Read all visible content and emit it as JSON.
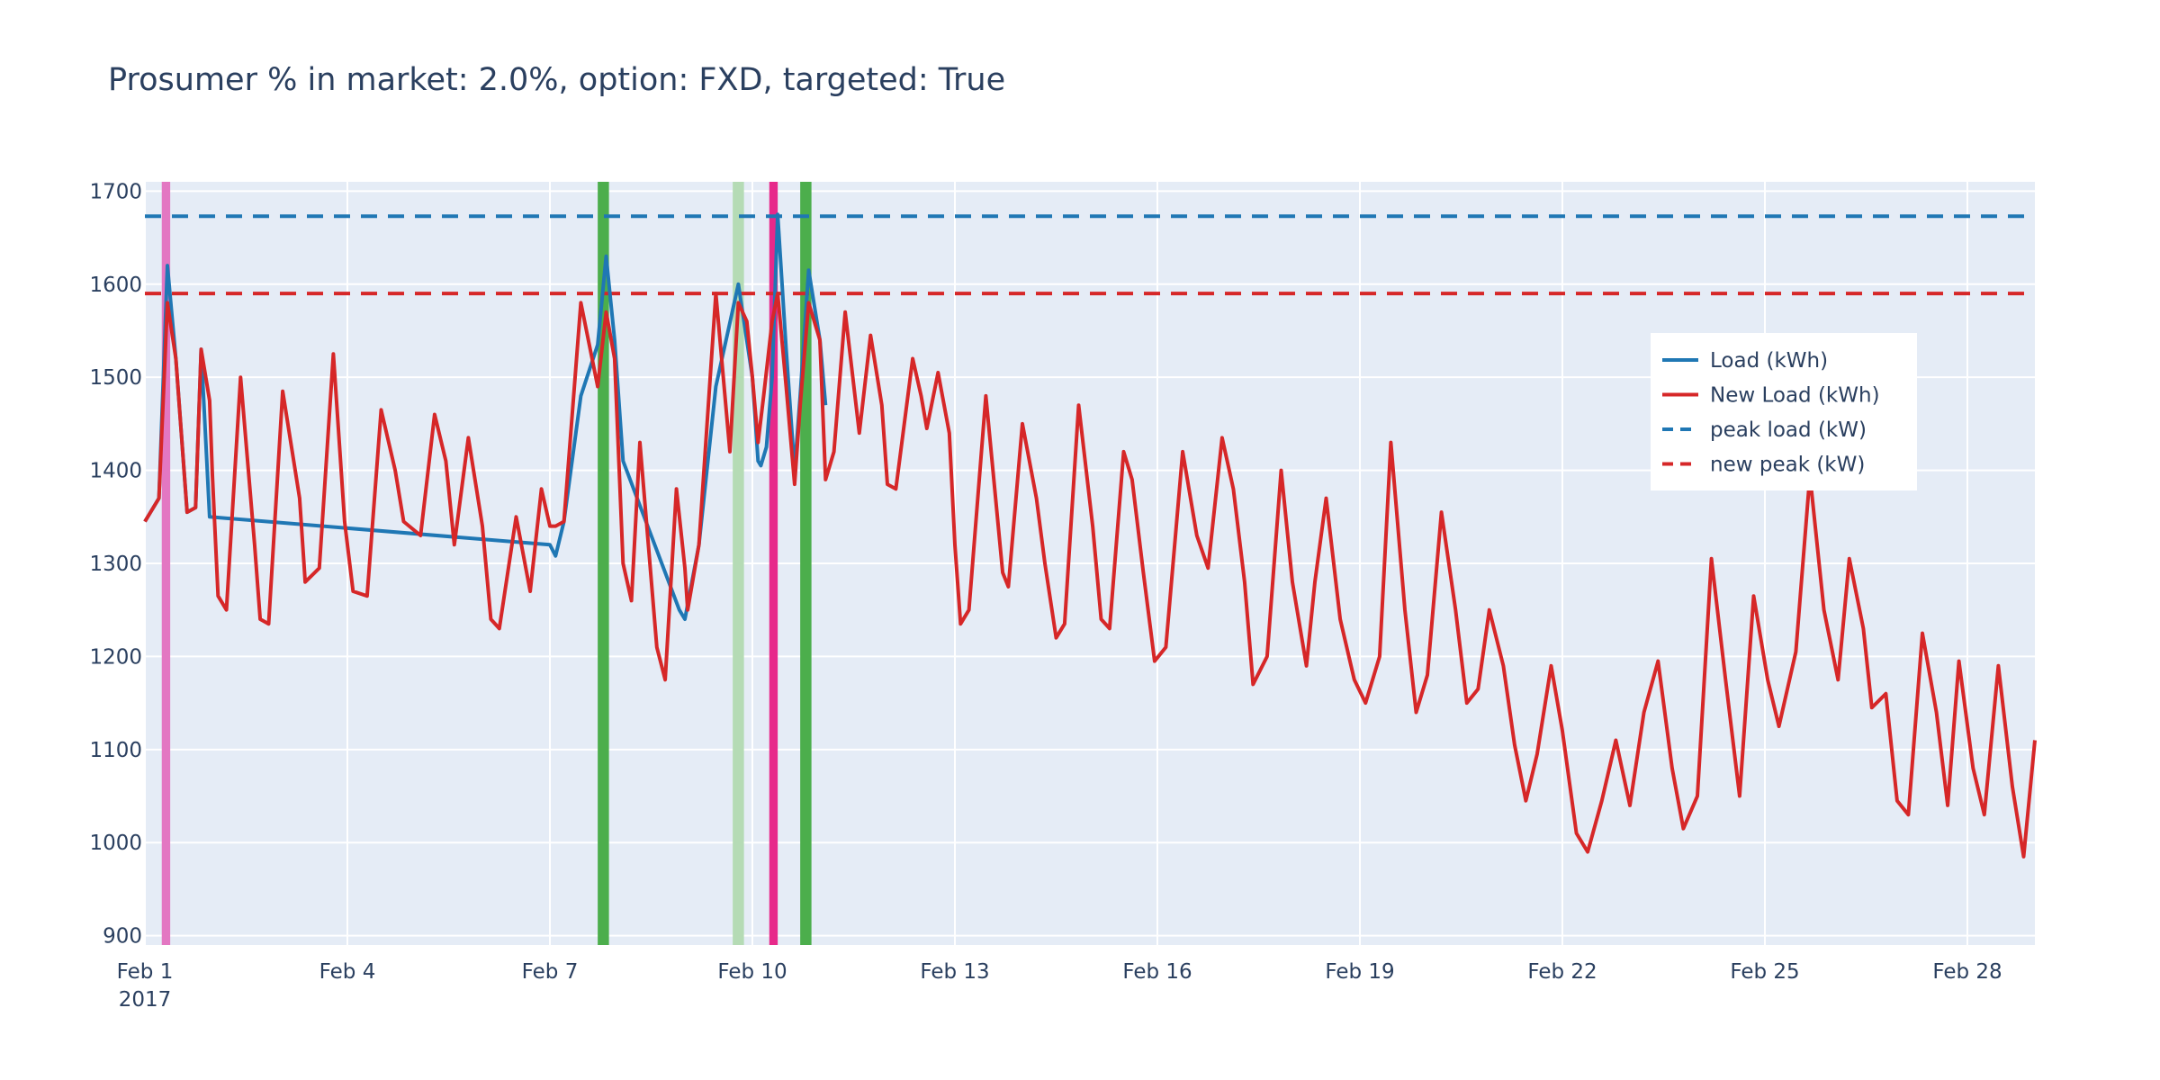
{
  "chart_data": {
    "type": "line",
    "title": "Prosumer % in market: 2.0%, option: FXD, targeted: True",
    "xlabel": "",
    "ylabel": "",
    "x_range": [
      "2017-02-01",
      "2017-02-29"
    ],
    "x_ticks": [
      {
        "value": "2017-02-01",
        "label": "Feb 1",
        "sublabel": "2017"
      },
      {
        "value": "2017-02-04",
        "label": "Feb 4"
      },
      {
        "value": "2017-02-07",
        "label": "Feb 7"
      },
      {
        "value": "2017-02-10",
        "label": "Feb 10"
      },
      {
        "value": "2017-02-13",
        "label": "Feb 13"
      },
      {
        "value": "2017-02-16",
        "label": "Feb 16"
      },
      {
        "value": "2017-02-19",
        "label": "Feb 19"
      },
      {
        "value": "2017-02-22",
        "label": "Feb 22"
      },
      {
        "value": "2017-02-25",
        "label": "Feb 25"
      },
      {
        "value": "2017-02-28",
        "label": "Feb 28"
      }
    ],
    "ylim": [
      890,
      1710
    ],
    "y_ticks": [
      900,
      1000,
      1100,
      1200,
      1300,
      1400,
      1500,
      1600,
      1700
    ],
    "grid": true,
    "legend_position": "right",
    "colors": {
      "load": "#1f77b4",
      "new_load": "#d62728",
      "plot_bg": "#e5ecf6",
      "grid": "#ffffff",
      "text": "#2a3f5f"
    },
    "bands": [
      {
        "start": "2017-02-01 06:00",
        "end": "2017-02-01 09:00",
        "color": "#e377c2"
      },
      {
        "start": "2017-02-07 17:00",
        "end": "2017-02-07 21:00",
        "color": "#4cae4c"
      },
      {
        "start": "2017-02-09 17:00",
        "end": "2017-02-09 21:00",
        "color": "#b5dbb5"
      },
      {
        "start": "2017-02-10 06:00",
        "end": "2017-02-10 09:00",
        "color": "#e7298a"
      },
      {
        "start": "2017-02-10 17:00",
        "end": "2017-02-10 21:00",
        "color": "#4cae4c"
      }
    ],
    "hlines": [
      {
        "name": "peak load (kW)",
        "value": 1673,
        "color": "#1f77b4",
        "dash": true
      },
      {
        "name": "new peak (kW)",
        "value": 1590,
        "color": "#d62728",
        "dash": true
      }
    ],
    "series": [
      {
        "name": "Load (kWh)",
        "color": "#1f77b4",
        "points": [
          [
            "2017-02-01 00:00",
            1345
          ],
          [
            "2017-02-01 05:00",
            1370
          ],
          [
            "2017-02-01 08:00",
            1620
          ],
          [
            "2017-02-01 11:00",
            1520
          ],
          [
            "2017-02-01 15:00",
            1355
          ],
          [
            "2017-02-01 18:00",
            1360
          ],
          [
            "2017-02-01 20:00",
            1530
          ],
          [
            "2017-02-01 23:00",
            1350
          ],
          [
            "2017-02-07 00:00",
            1320
          ],
          [
            "2017-02-07 02:00",
            1308
          ],
          [
            "2017-02-07 05:00",
            1345
          ],
          [
            "2017-02-07 11:00",
            1480
          ],
          [
            "2017-02-07 17:00",
            1535
          ],
          [
            "2017-02-07 20:00",
            1630
          ],
          [
            "2017-02-07 23:00",
            1540
          ],
          [
            "2017-02-08 02:00",
            1410
          ],
          [
            "2017-02-08 22:00",
            1250
          ],
          [
            "2017-02-09 00:00",
            1240
          ],
          [
            "2017-02-09 05:00",
            1320
          ],
          [
            "2017-02-09 11:00",
            1490
          ],
          [
            "2017-02-09 19:00",
            1600
          ],
          [
            "2017-02-10 00:00",
            1500
          ],
          [
            "2017-02-10 02:00",
            1410
          ],
          [
            "2017-02-10 03:00",
            1405
          ],
          [
            "2017-02-10 05:00",
            1425
          ],
          [
            "2017-02-10 07:00",
            1500
          ],
          [
            "2017-02-10 09:00",
            1675
          ],
          [
            "2017-02-10 12:00",
            1530
          ],
          [
            "2017-02-10 15:00",
            1400
          ],
          [
            "2017-02-10 17:00",
            1480
          ],
          [
            "2017-02-10 20:00",
            1615
          ],
          [
            "2017-02-11 00:00",
            1540
          ],
          [
            "2017-02-11 02:00",
            1470
          ]
        ]
      },
      {
        "name": "New Load (kWh)",
        "color": "#d62728",
        "points": [
          [
            "2017-02-01 00:00",
            1345
          ],
          [
            "2017-02-01 05:00",
            1370
          ],
          [
            "2017-02-01 08:00",
            1580
          ],
          [
            "2017-02-01 11:00",
            1520
          ],
          [
            "2017-02-01 15:00",
            1355
          ],
          [
            "2017-02-01 18:00",
            1360
          ],
          [
            "2017-02-01 20:00",
            1530
          ],
          [
            "2017-02-01 23:00",
            1475
          ],
          [
            "2017-02-02 00:00",
            1395
          ],
          [
            "2017-02-02 02:00",
            1265
          ],
          [
            "2017-02-02 05:00",
            1250
          ],
          [
            "2017-02-02 10:00",
            1500
          ],
          [
            "2017-02-02 15:00",
            1320
          ],
          [
            "2017-02-02 17:00",
            1240
          ],
          [
            "2017-02-02 20:00",
            1235
          ],
          [
            "2017-02-03 01:00",
            1485
          ],
          [
            "2017-02-03 07:00",
            1370
          ],
          [
            "2017-02-03 09:00",
            1280
          ],
          [
            "2017-02-03 14:00",
            1295
          ],
          [
            "2017-02-03 19:00",
            1525
          ],
          [
            "2017-02-03 23:00",
            1345
          ],
          [
            "2017-02-04 02:00",
            1270
          ],
          [
            "2017-02-04 07:00",
            1265
          ],
          [
            "2017-02-04 12:00",
            1465
          ],
          [
            "2017-02-04 17:00",
            1400
          ],
          [
            "2017-02-04 20:00",
            1345
          ],
          [
            "2017-02-05 02:00",
            1330
          ],
          [
            "2017-02-05 07:00",
            1460
          ],
          [
            "2017-02-05 11:00",
            1410
          ],
          [
            "2017-02-05 14:00",
            1320
          ],
          [
            "2017-02-05 19:00",
            1435
          ],
          [
            "2017-02-06 00:00",
            1340
          ],
          [
            "2017-02-06 03:00",
            1240
          ],
          [
            "2017-02-06 06:00",
            1230
          ],
          [
            "2017-02-06 12:00",
            1350
          ],
          [
            "2017-02-06 17:00",
            1270
          ],
          [
            "2017-02-06 21:00",
            1380
          ],
          [
            "2017-02-07 00:00",
            1340
          ],
          [
            "2017-02-07 02:00",
            1340
          ],
          [
            "2017-02-07 05:00",
            1345
          ],
          [
            "2017-02-07 11:00",
            1580
          ],
          [
            "2017-02-07 17:00",
            1490
          ],
          [
            "2017-02-07 20:00",
            1570
          ],
          [
            "2017-02-07 23:00",
            1520
          ],
          [
            "2017-02-08 02:00",
            1300
          ],
          [
            "2017-02-08 05:00",
            1260
          ],
          [
            "2017-02-08 08:00",
            1430
          ],
          [
            "2017-02-08 14:00",
            1210
          ],
          [
            "2017-02-08 17:00",
            1175
          ],
          [
            "2017-02-08 21:00",
            1380
          ],
          [
            "2017-02-09 00:00",
            1295
          ],
          [
            "2017-02-09 01:00",
            1250
          ],
          [
            "2017-02-09 05:00",
            1320
          ],
          [
            "2017-02-09 11:00",
            1590
          ],
          [
            "2017-02-09 16:00",
            1420
          ],
          [
            "2017-02-09 19:00",
            1580
          ],
          [
            "2017-02-09 22:00",
            1560
          ],
          [
            "2017-02-10 00:00",
            1500
          ],
          [
            "2017-02-10 02:00",
            1430
          ],
          [
            "2017-02-10 04:00",
            1480
          ],
          [
            "2017-02-10 07:00",
            1560
          ],
          [
            "2017-02-10 09:00",
            1590
          ],
          [
            "2017-02-10 12:00",
            1490
          ],
          [
            "2017-02-10 15:00",
            1385
          ],
          [
            "2017-02-10 17:00",
            1470
          ],
          [
            "2017-02-10 20:00",
            1580
          ],
          [
            "2017-02-11 00:00",
            1540
          ],
          [
            "2017-02-11 02:00",
            1390
          ],
          [
            "2017-02-11 05:00",
            1420
          ],
          [
            "2017-02-11 09:00",
            1570
          ],
          [
            "2017-02-11 14:00",
            1440
          ],
          [
            "2017-02-11 18:00",
            1545
          ],
          [
            "2017-02-11 22:00",
            1470
          ],
          [
            "2017-02-12 00:00",
            1385
          ],
          [
            "2017-02-12 03:00",
            1380
          ],
          [
            "2017-02-12 09:00",
            1520
          ],
          [
            "2017-02-12 12:00",
            1480
          ],
          [
            "2017-02-12 14:00",
            1445
          ],
          [
            "2017-02-12 18:00",
            1505
          ],
          [
            "2017-02-12 22:00",
            1440
          ],
          [
            "2017-02-13 00:00",
            1320
          ],
          [
            "2017-02-13 02:00",
            1235
          ],
          [
            "2017-02-13 05:00",
            1250
          ],
          [
            "2017-02-13 11:00",
            1480
          ],
          [
            "2017-02-13 17:00",
            1290
          ],
          [
            "2017-02-13 19:00",
            1275
          ],
          [
            "2017-02-14 00:00",
            1450
          ],
          [
            "2017-02-14 05:00",
            1370
          ],
          [
            "2017-02-14 08:00",
            1300
          ],
          [
            "2017-02-14 12:00",
            1220
          ],
          [
            "2017-02-14 15:00",
            1235
          ],
          [
            "2017-02-14 20:00",
            1470
          ],
          [
            "2017-02-15 01:00",
            1340
          ],
          [
            "2017-02-15 04:00",
            1240
          ],
          [
            "2017-02-15 07:00",
            1230
          ],
          [
            "2017-02-15 12:00",
            1420
          ],
          [
            "2017-02-15 15:00",
            1390
          ],
          [
            "2017-02-15 19:00",
            1290
          ],
          [
            "2017-02-15 23:00",
            1195
          ],
          [
            "2017-02-16 03:00",
            1210
          ],
          [
            "2017-02-16 09:00",
            1420
          ],
          [
            "2017-02-16 14:00",
            1330
          ],
          [
            "2017-02-16 18:00",
            1295
          ],
          [
            "2017-02-16 23:00",
            1435
          ],
          [
            "2017-02-17 03:00",
            1380
          ],
          [
            "2017-02-17 07:00",
            1280
          ],
          [
            "2017-02-17 10:00",
            1170
          ],
          [
            "2017-02-17 15:00",
            1200
          ],
          [
            "2017-02-17 20:00",
            1400
          ],
          [
            "2017-02-18 00:00",
            1280
          ],
          [
            "2017-02-18 05:00",
            1190
          ],
          [
            "2017-02-18 08:00",
            1280
          ],
          [
            "2017-02-18 12:00",
            1370
          ],
          [
            "2017-02-18 17:00",
            1240
          ],
          [
            "2017-02-18 22:00",
            1175
          ],
          [
            "2017-02-19 02:00",
            1150
          ],
          [
            "2017-02-19 07:00",
            1200
          ],
          [
            "2017-02-19 11:00",
            1430
          ],
          [
            "2017-02-19 16:00",
            1250
          ],
          [
            "2017-02-19 20:00",
            1140
          ],
          [
            "2017-02-20 00:00",
            1180
          ],
          [
            "2017-02-20 05:00",
            1355
          ],
          [
            "2017-02-20 10:00",
            1250
          ],
          [
            "2017-02-20 14:00",
            1150
          ],
          [
            "2017-02-20 18:00",
            1165
          ],
          [
            "2017-02-20 22:00",
            1250
          ],
          [
            "2017-02-21 03:00",
            1190
          ],
          [
            "2017-02-21 07:00",
            1105
          ],
          [
            "2017-02-21 11:00",
            1045
          ],
          [
            "2017-02-21 15:00",
            1095
          ],
          [
            "2017-02-21 20:00",
            1190
          ],
          [
            "2017-02-22 00:00",
            1120
          ],
          [
            "2017-02-22 05:00",
            1010
          ],
          [
            "2017-02-22 09:00",
            990
          ],
          [
            "2017-02-22 14:00",
            1045
          ],
          [
            "2017-02-22 19:00",
            1110
          ],
          [
            "2017-02-23 00:00",
            1040
          ],
          [
            "2017-02-23 05:00",
            1140
          ],
          [
            "2017-02-23 10:00",
            1195
          ],
          [
            "2017-02-23 15:00",
            1080
          ],
          [
            "2017-02-23 19:00",
            1015
          ],
          [
            "2017-02-24 00:00",
            1050
          ],
          [
            "2017-02-24 05:00",
            1305
          ],
          [
            "2017-02-24 10:00",
            1175
          ],
          [
            "2017-02-24 15:00",
            1050
          ],
          [
            "2017-02-24 20:00",
            1265
          ],
          [
            "2017-02-25 01:00",
            1175
          ],
          [
            "2017-02-25 05:00",
            1125
          ],
          [
            "2017-02-25 11:00",
            1205
          ],
          [
            "2017-02-25 16:00",
            1395
          ],
          [
            "2017-02-25 21:00",
            1250
          ],
          [
            "2017-02-26 02:00",
            1175
          ],
          [
            "2017-02-26 06:00",
            1305
          ],
          [
            "2017-02-26 11:00",
            1230
          ],
          [
            "2017-02-26 14:00",
            1145
          ],
          [
            "2017-02-26 19:00",
            1160
          ],
          [
            "2017-02-26 23:00",
            1045
          ],
          [
            "2017-02-27 03:00",
            1030
          ],
          [
            "2017-02-27 08:00",
            1225
          ],
          [
            "2017-02-27 13:00",
            1140
          ],
          [
            "2017-02-27 17:00",
            1040
          ],
          [
            "2017-02-27 21:00",
            1195
          ],
          [
            "2017-02-28 02:00",
            1080
          ],
          [
            "2017-02-28 06:00",
            1030
          ],
          [
            "2017-02-28 11:00",
            1190
          ],
          [
            "2017-02-28 16:00",
            1060
          ],
          [
            "2017-02-28 20:00",
            985
          ],
          [
            "2017-02-29 00:00",
            1110
          ]
        ]
      }
    ],
    "legend": [
      {
        "label": "Load (kWh)",
        "color": "#1f77b4",
        "dash": false
      },
      {
        "label": "New Load (kWh)",
        "color": "#d62728",
        "dash": false
      },
      {
        "label": "peak load (kW)",
        "color": "#1f77b4",
        "dash": true
      },
      {
        "label": "new peak (kW)",
        "color": "#d62728",
        "dash": true
      }
    ]
  }
}
